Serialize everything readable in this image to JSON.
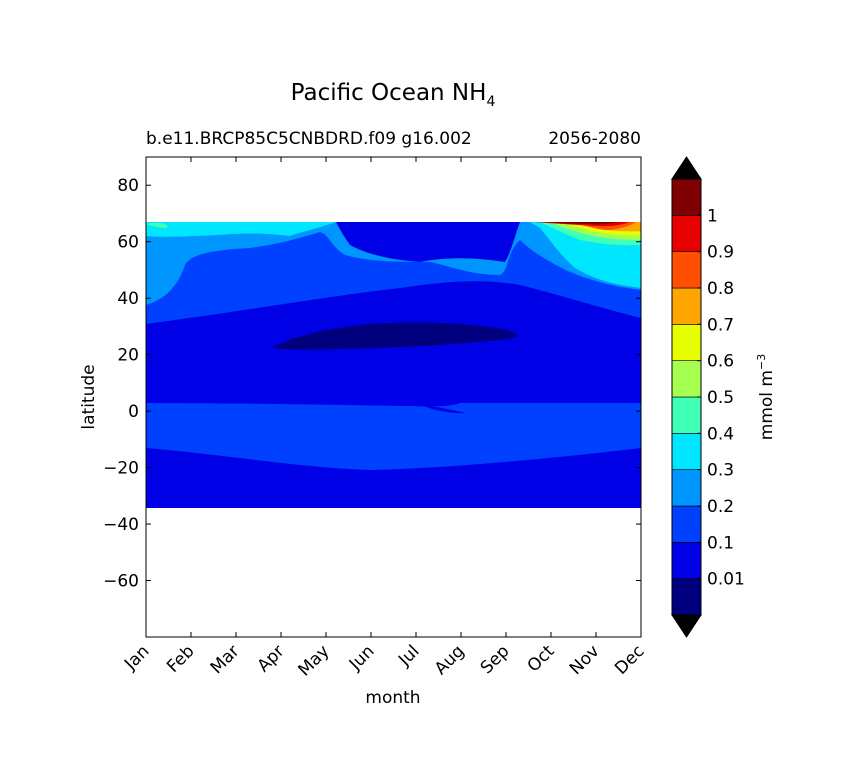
{
  "chart_data": {
    "type": "heatmap",
    "title": "Pacific Ocean NH",
    "title_subscript": "4",
    "subtitle_left": "b.e11.BRCP85C5CNBDRD.f09 g16.002",
    "subtitle_right": "2056-2080",
    "xlabel": "month",
    "ylabel": "latitude",
    "x_categories": [
      "Jan",
      "Feb",
      "Mar",
      "Apr",
      "May",
      "Jun",
      "Jul",
      "Aug",
      "Sep",
      "Oct",
      "Nov",
      "Dec"
    ],
    "ylim": [
      -80,
      90
    ],
    "yticks": [
      80,
      60,
      40,
      20,
      0,
      -20,
      -40,
      -60
    ],
    "ytick_labels": [
      "80",
      "60",
      "40",
      "20",
      "0",
      "−20",
      "−40",
      "−60"
    ],
    "data_lat_range": [
      -34,
      67
    ],
    "colorbar": {
      "label": "mmol m",
      "label_superscript": "−3",
      "tick_labels": [
        "0.01",
        "0.1",
        "0.2",
        "0.3",
        "0.4",
        "0.5",
        "0.6",
        "0.7",
        "0.8",
        "0.9",
        "1"
      ],
      "extend": "both",
      "colors": [
        "#00007f",
        "#0000e6",
        "#0040ff",
        "#0096ff",
        "#00e6ff",
        "#40ffb6",
        "#a6ff4f",
        "#e6ff00",
        "#ffa500",
        "#ff4f00",
        "#e60000",
        "#7f0000"
      ],
      "under_color": "#000000",
      "over_color": "#000000"
    },
    "bands": [
      {
        "level": "0.1-0.2",
        "lat_range": [
          -34,
          -30
        ],
        "months": "Jun-Aug"
      },
      {
        "level": "0.1-0.2",
        "lat_range": [
          -34,
          -17
        ],
        "months": "all"
      },
      {
        "level": "0.2-0.3",
        "lat_range": [
          -17,
          4
        ],
        "months": "all"
      },
      {
        "level": "0.1-0.2",
        "lat_range": [
          4,
          33
        ],
        "months": "all"
      },
      {
        "level": "0.01-0.1",
        "lat_range": [
          22,
          31
        ],
        "months": "Apr-Sep"
      },
      {
        "level": "0.2-0.3",
        "lat_range": [
          33,
          67
        ],
        "months": "all"
      },
      {
        "level": "0.3-0.4",
        "lat_range": [
          43,
          67
        ],
        "months": "Sep-Dec"
      },
      {
        "level": "0.6-1",
        "lat_range": [
          60,
          67
        ],
        "months": "Oct-Dec"
      }
    ]
  }
}
